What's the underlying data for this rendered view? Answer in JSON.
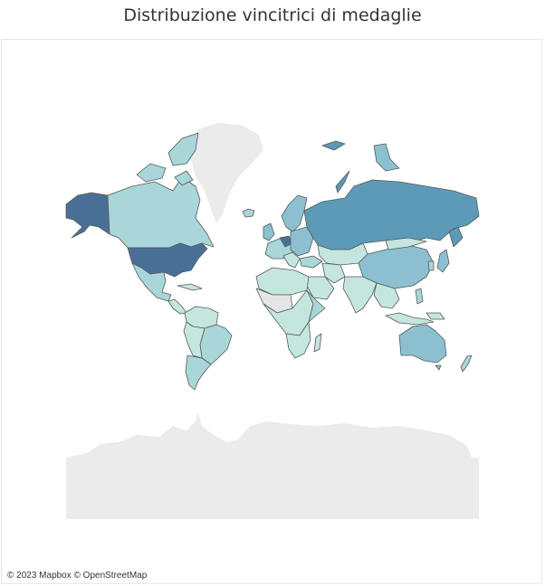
{
  "title": "Distribuzione vincitrici di medaglie",
  "attribution": "© 2023 Mapbox © OpenStreetMap",
  "colors": {
    "no_data": "#e6e6e6",
    "level_1": "#c5e6df",
    "level_2": "#a9d6d8",
    "level_3": "#8cc0d0",
    "level_4": "#5d9ab8",
    "level_5": "#4a6f96",
    "border": "#555a5a"
  },
  "map": {
    "type": "choropleth",
    "projection": "mercator",
    "highest_value_country": "United States"
  }
}
